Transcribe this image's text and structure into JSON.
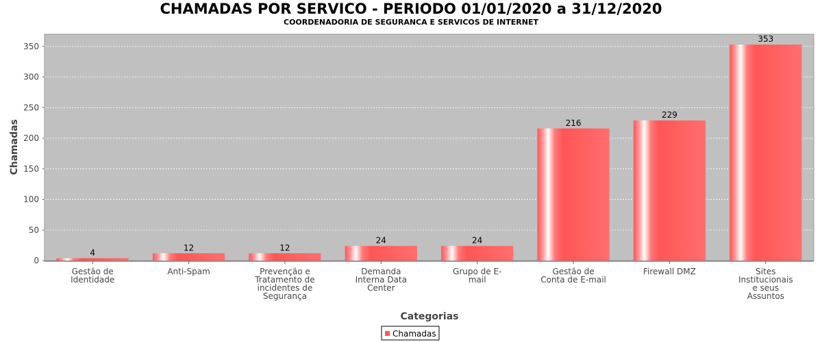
{
  "chart_data": {
    "type": "bar",
    "title": "CHAMADAS POR SERVICO - PERIODO 01/01/2020 a 31/12/2020",
    "subtitle": "COORDENADORIA DE SEGURANCA E SERVICOS DE INTERNET",
    "xlabel": "Categorias",
    "ylabel": "Chamadas",
    "ylim": [
      0,
      370
    ],
    "yticks": [
      0,
      50,
      100,
      150,
      200,
      250,
      300,
      350
    ],
    "grid": true,
    "legend_position": "bottom",
    "categories": [
      [
        "Gestão de",
        "Identidade"
      ],
      [
        "Anti-Spam"
      ],
      [
        "Prevenção e",
        "Tratamento de",
        "incidentes de",
        "Segurança"
      ],
      [
        "Demanda",
        "Interna Data",
        "Center"
      ],
      [
        "Grupo de E-",
        "mail"
      ],
      [
        "Gestão de",
        "Conta de E-mail"
      ],
      [
        "Firewall DMZ"
      ],
      [
        "Sites",
        "Institucionais",
        "e seus",
        "Assuntos"
      ]
    ],
    "series": [
      {
        "name": "Chamadas",
        "color": "#ff5555",
        "values": [
          4,
          12,
          12,
          24,
          24,
          216,
          229,
          353
        ]
      }
    ],
    "plot_background": "#c0c0c0"
  }
}
